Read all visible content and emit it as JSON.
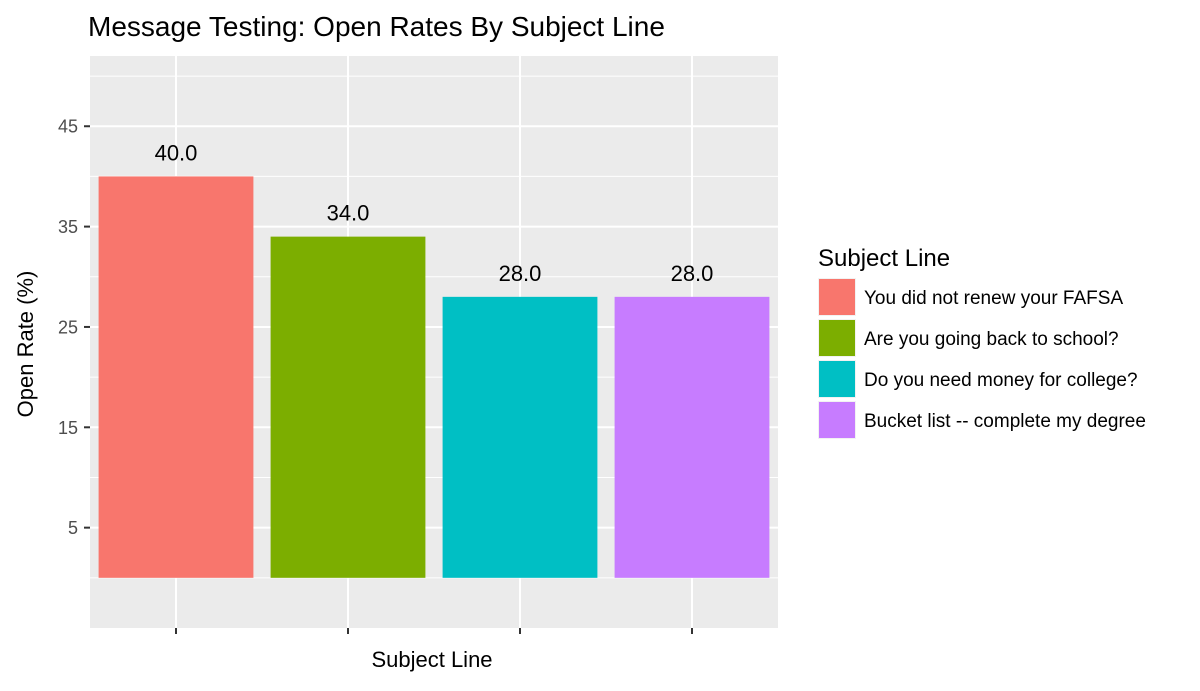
{
  "chart_data": {
    "type": "bar",
    "title": "Message Testing: Open Rates By Subject Line",
    "xlabel": "Subject Line",
    "ylabel": "Open Rate (%)",
    "ylim": [
      -5,
      52
    ],
    "yticks": [
      5,
      15,
      25,
      35,
      45
    ],
    "grid": true,
    "legend_position": "right",
    "legend_title": "Subject Line",
    "categories": [
      "You did not renew your FAFSA",
      "Are you going back to school?",
      "Do you need money for college?",
      "Bucket list -- complete my degree"
    ],
    "values": [
      40.0,
      34.0,
      28.0,
      28.0
    ],
    "value_labels": [
      "40.0",
      "34.0",
      "28.0",
      "28.0"
    ],
    "colors": [
      "#F8766D",
      "#7CAE00",
      "#00BFC4",
      "#C77CFF"
    ],
    "panel_color": "#EBEBEB",
    "grid_color": "#FFFFFF"
  }
}
